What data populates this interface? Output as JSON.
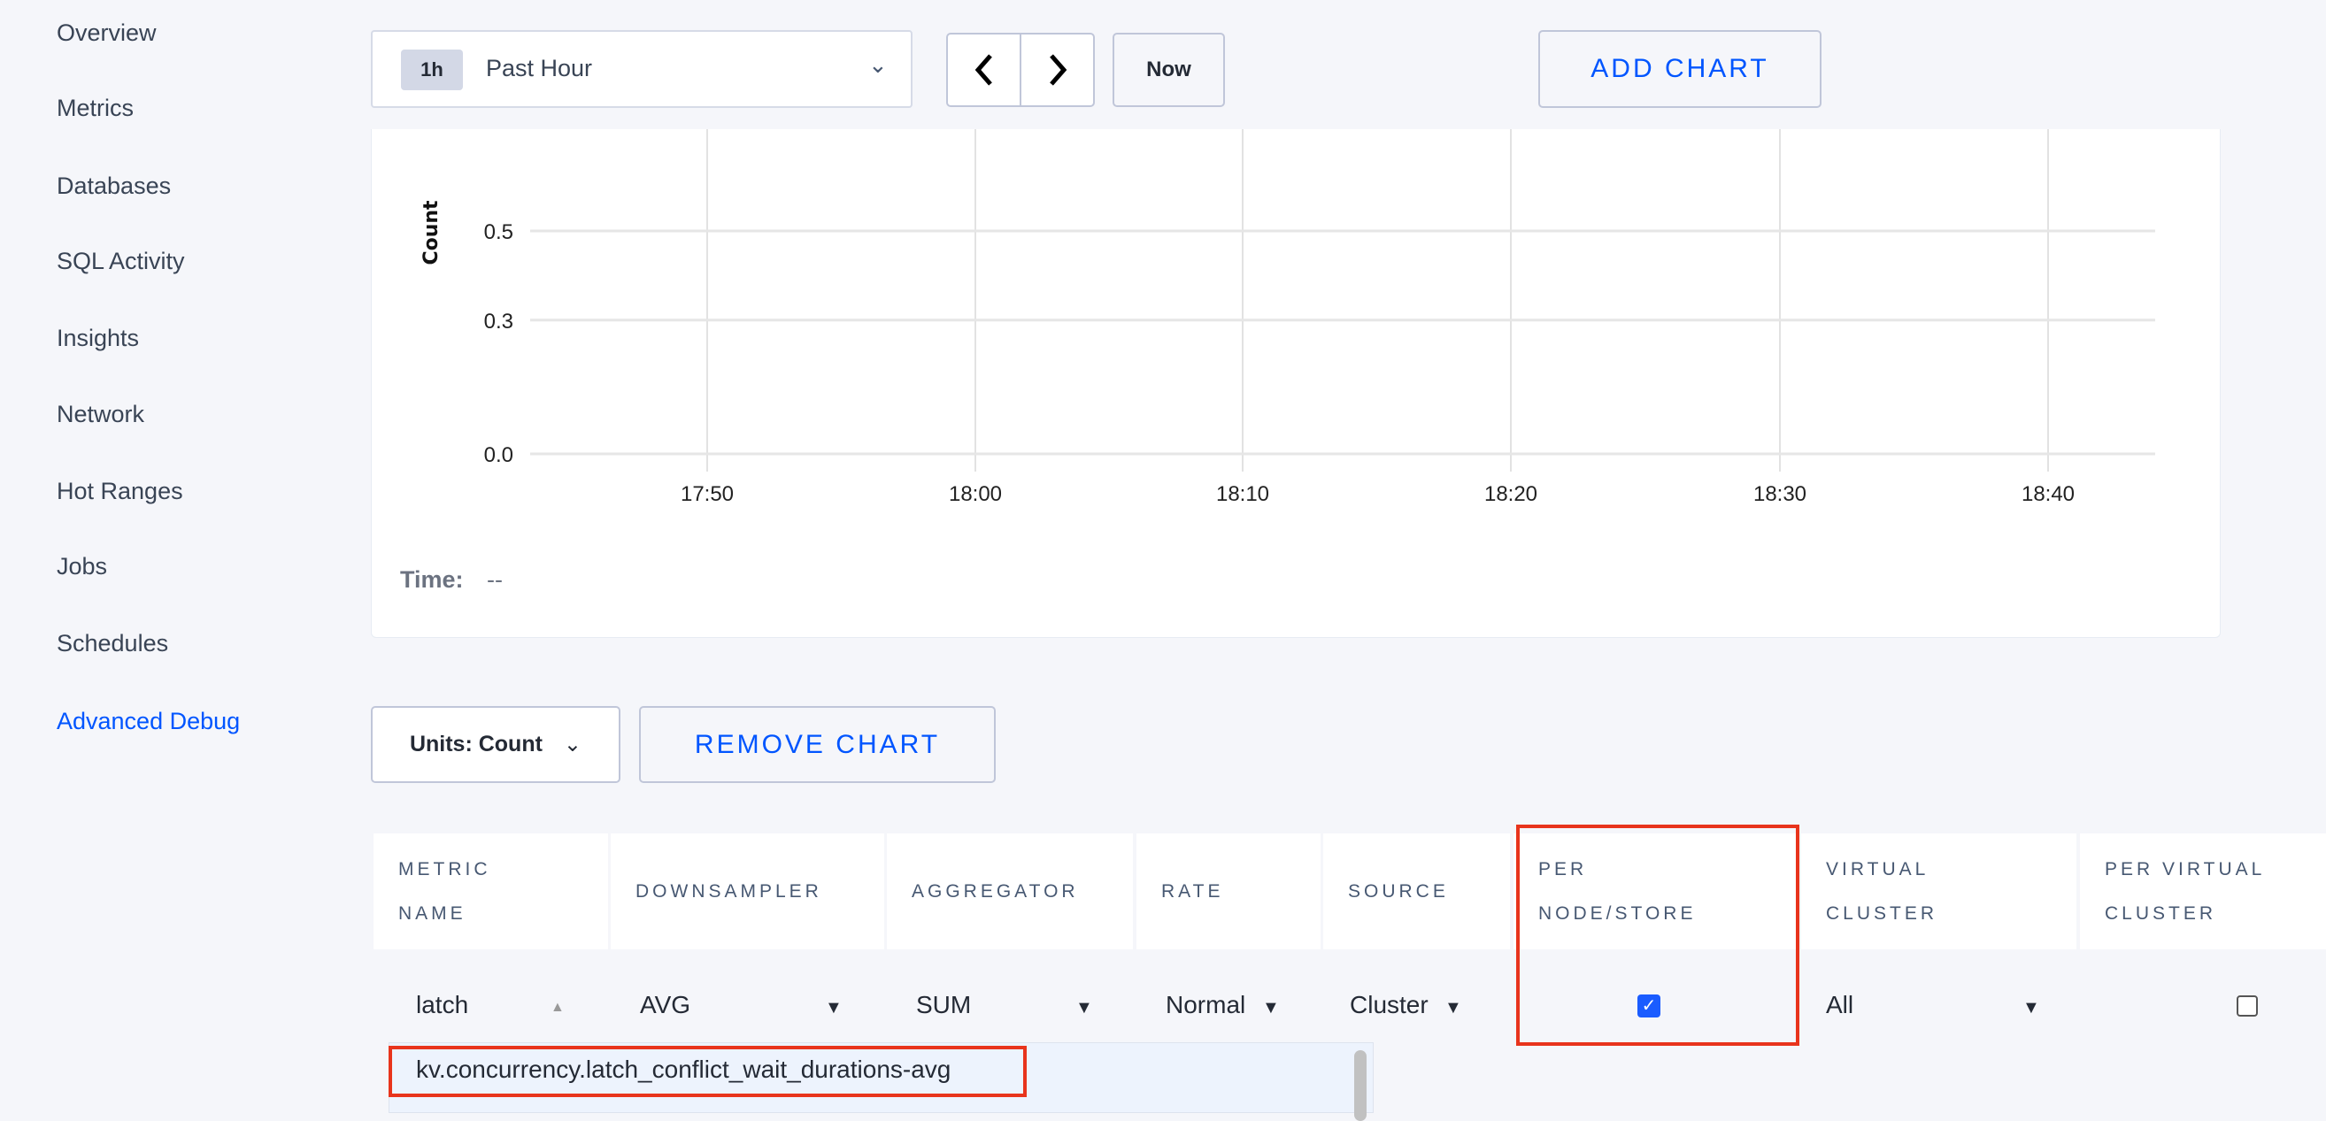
{
  "sidebar": {
    "items": [
      {
        "label": "Overview"
      },
      {
        "label": "Metrics"
      },
      {
        "label": "Databases"
      },
      {
        "label": "SQL Activity"
      },
      {
        "label": "Insights"
      },
      {
        "label": "Network"
      },
      {
        "label": "Hot Ranges"
      },
      {
        "label": "Jobs"
      },
      {
        "label": "Schedules"
      },
      {
        "label": "Advanced Debug",
        "active": true
      }
    ]
  },
  "toolbar": {
    "time_badge": "1h",
    "time_range": "Past Hour",
    "now_label": "Now",
    "add_chart_label": "ADD CHART",
    "prev_icon": "chevron-left-icon",
    "next_icon": "chevron-right-icon"
  },
  "chart_data": {
    "type": "line",
    "title": "",
    "ylabel": "Count",
    "xlabel": "",
    "y_ticks": [
      "0.5",
      "0.3",
      "0.0"
    ],
    "y_tick_values": [
      0.5,
      0.3,
      0.0
    ],
    "x_ticks": [
      "17:50",
      "18:00",
      "18:10",
      "18:20",
      "18:30",
      "18:40"
    ],
    "series": [],
    "grid": true
  },
  "chart_footer": {
    "time_label": "Time:",
    "time_value": "--"
  },
  "controls": {
    "units_label": "Units: Count",
    "remove_chart_label": "REMOVE CHART"
  },
  "table": {
    "headers": [
      [
        "METRIC",
        "NAME"
      ],
      [
        "DOWNSAMPLER"
      ],
      [
        "AGGREGATOR"
      ],
      [
        "RATE"
      ],
      [
        "SOURCE"
      ],
      [
        "PER",
        "NODE/STORE"
      ],
      [
        "VIRTUAL",
        "CLUSTER"
      ],
      [
        "PER VIRTUAL",
        "CLUSTER"
      ]
    ],
    "row": {
      "metric_name": "latch",
      "downsampler": "AVG",
      "aggregator": "SUM",
      "rate": "Normal",
      "source": "Cluster",
      "per_node_store": true,
      "virtual_cluster": "All",
      "per_virtual_cluster": false
    }
  },
  "metric_dropdown": {
    "options": [
      "kv.concurrency.latch_conflict_wait_durations-avg"
    ]
  },
  "colors": {
    "accent": "#0055ff",
    "highlight": "#e8341c"
  }
}
